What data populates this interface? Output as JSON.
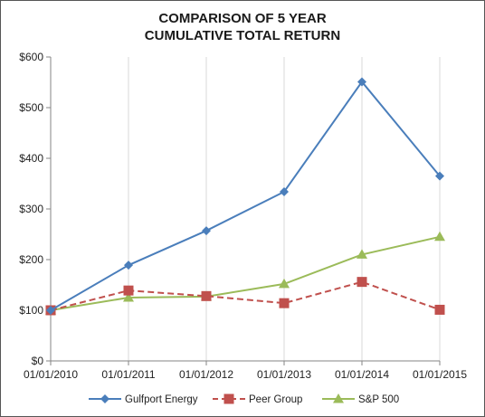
{
  "chart_data": {
    "type": "line",
    "title": [
      "COMPARISON OF 5 YEAR",
      "CUMULATIVE TOTAL RETURN"
    ],
    "xlabel": "",
    "ylabel": "",
    "categories": [
      "01/01/2010",
      "01/01/2011",
      "01/01/2012",
      "01/01/2013",
      "01/01/2014",
      "01/01/2015"
    ],
    "yticks": [
      "$0",
      "$100",
      "$200",
      "$300",
      "$400",
      "$500",
      "$600"
    ],
    "ylim": [
      0,
      600
    ],
    "grid": "vertical",
    "legend_position": "bottom",
    "series": [
      {
        "name": "Gulfport Energy",
        "color": "#4a7ebb",
        "marker": "diamond",
        "dash": "solid",
        "values": [
          100,
          189,
          257,
          334,
          551,
          365
        ]
      },
      {
        "name": "Peer Group",
        "color": "#c0504d",
        "marker": "square",
        "dash": "dashed",
        "values": [
          100,
          139,
          128,
          114,
          156,
          101
        ]
      },
      {
        "name": "S&P 500",
        "color": "#9bbb59",
        "marker": "triangle",
        "dash": "solid",
        "values": [
          100,
          125,
          127,
          152,
          210,
          245
        ]
      }
    ]
  }
}
